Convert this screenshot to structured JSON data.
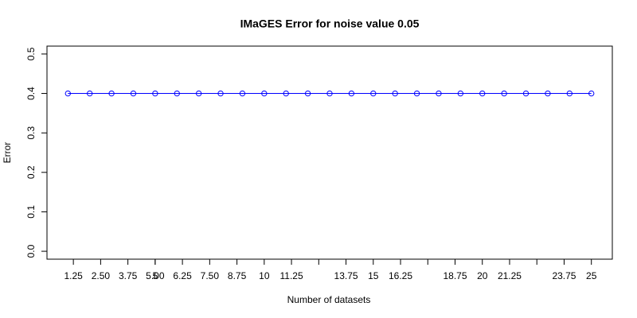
{
  "chart_data": {
    "type": "line",
    "title": "IMaGES Error for noise value 0.05",
    "x_label": "Number of datasets",
    "y_label": "Error",
    "x": [
      1,
      2,
      3,
      4,
      5,
      6,
      7,
      8,
      9,
      10,
      11,
      12,
      13,
      14,
      15,
      16,
      17,
      18,
      19,
      20,
      21,
      22,
      23,
      24,
      25
    ],
    "series": [
      {
        "color": "#0000ff",
        "marker": "circle",
        "values": [
          0.4,
          0.4,
          0.4,
          0.4,
          0.4,
          0.4,
          0.4,
          0.4,
          0.4,
          0.4,
          0.4,
          0.4,
          0.4,
          0.4,
          0.4,
          0.4,
          0.4,
          0.4,
          0.4,
          0.4,
          0.4,
          0.4,
          0.4,
          0.4,
          0.4
        ]
      }
    ],
    "xlim": [
      0.04,
      25.96
    ],
    "ylim": [
      -0.02,
      0.52
    ],
    "xticks": [
      1.25,
      {
        "value": 2.5,
        "label": "2.50"
      },
      3.75,
      {
        "value": 5,
        "label": "5.00"
      },
      5,
      6.25,
      {
        "value": 7.5,
        "label": "7.50"
      },
      8.75,
      10,
      11.25,
      {
        "value": 12.5,
        "label": null
      },
      13.75,
      15,
      16.25,
      {
        "value": 17.5,
        "label": null
      },
      18.75,
      20,
      21.25,
      {
        "value": 22.5,
        "label": null
      },
      23.75,
      25
    ],
    "yticks": [
      {
        "value": 0,
        "label": "0.0"
      },
      0.1,
      0.2,
      0.3,
      0.4,
      0.5
    ]
  }
}
